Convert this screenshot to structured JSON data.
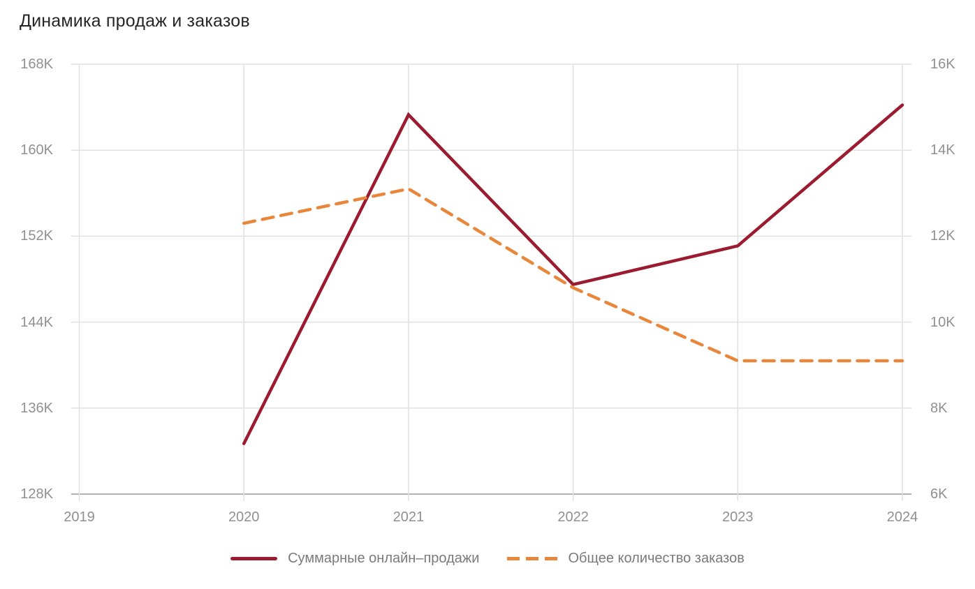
{
  "chart_data": {
    "type": "line",
    "title": "Динамика продаж и заказов",
    "x_categories": [
      "2019",
      "2020",
      "2021",
      "2022",
      "2023",
      "2024"
    ],
    "y_axis_left": {
      "ticks": [
        "168K",
        "160K",
        "152K",
        "144K",
        "136K",
        "128K"
      ],
      "min": 128,
      "max": 168,
      "unit": "K"
    },
    "y_axis_right": {
      "ticks": [
        "16K",
        "14K",
        "12K",
        "10K",
        "8K",
        "6K"
      ],
      "min": 6,
      "max": 16,
      "unit": "K"
    },
    "grid": true,
    "legend_position": "bottom",
    "series": [
      {
        "name": "Суммарные онлайн–продажи",
        "axis": "left",
        "line_style": "solid",
        "color": "#9b1c30",
        "x": [
          "2020",
          "2021",
          "2022",
          "2023",
          "2024"
        ],
        "values_k": [
          132.7,
          163.3,
          147.5,
          151.1,
          164.2
        ]
      },
      {
        "name": "Общее количество заказов",
        "axis": "right",
        "line_style": "dashed",
        "color": "#e8873c",
        "x": [
          "2020",
          "2021",
          "2022",
          "2023",
          "2024"
        ],
        "values_k": [
          12.3,
          13.1,
          10.8,
          9.1,
          9.1
        ]
      }
    ],
    "colors": {
      "gridline": "#e0e0e0",
      "axis_line": "#b2b2b2",
      "tick_text": "#909090",
      "legend_text": "#7a7a7a",
      "title_text": "#262626"
    }
  }
}
